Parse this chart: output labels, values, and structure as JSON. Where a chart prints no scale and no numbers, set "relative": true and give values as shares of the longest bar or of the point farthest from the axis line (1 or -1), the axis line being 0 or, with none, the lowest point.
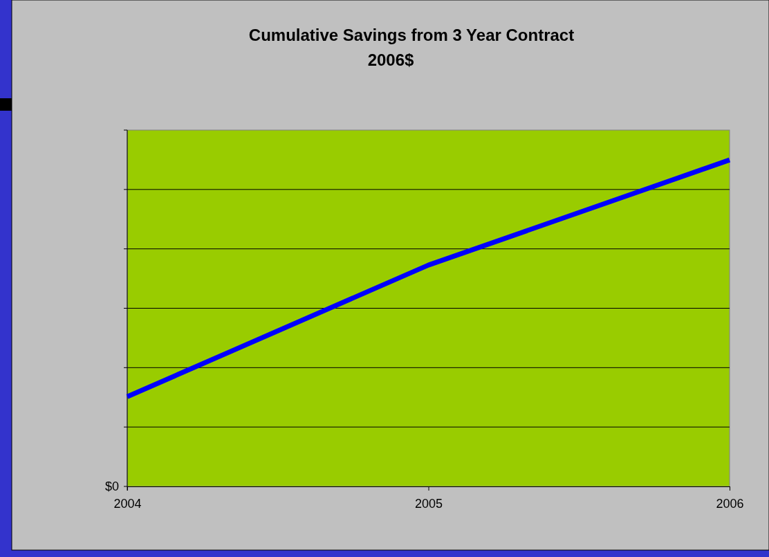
{
  "chart_data": {
    "type": "line",
    "title": "Cumulative Savings from 3 Year Contract",
    "subtitle": "2006$",
    "categories": [
      "2004",
      "2005",
      "2006"
    ],
    "series": [
      {
        "color": "#0000ff",
        "values": [
          0.275,
          0.678,
          1
        ]
      }
    ],
    "relative": true,
    "grid": "y",
    "marker": "none",
    "line_style": "solid",
    "annotations": [
      "$0"
    ]
  }
}
